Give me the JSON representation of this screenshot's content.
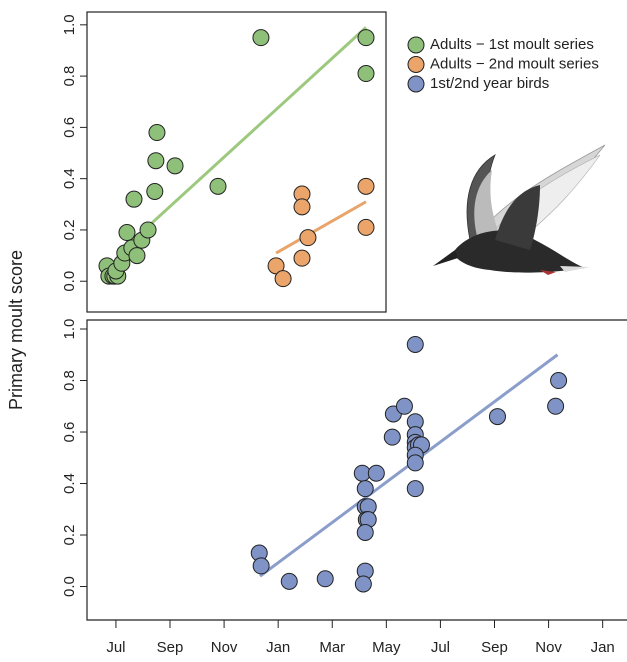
{
  "chart_data": [
    {
      "type": "scatter",
      "xlim": [
        -1.07,
        10.0
      ],
      "ylim": [
        -0.12,
        1.05
      ],
      "yticks": [
        {
          "value": 0,
          "label": "0.0"
        },
        {
          "value": 0.2,
          "label": "0.2"
        },
        {
          "value": 0.4,
          "label": "0.4"
        },
        {
          "value": 0.6,
          "label": "0.6"
        },
        {
          "value": 0.8,
          "label": "0.8"
        },
        {
          "value": 1.0,
          "label": "1.0"
        }
      ],
      "legend": "top-right",
      "series": [
        {
          "name": "Adults − 1st moult series",
          "color": "#8fc07a",
          "line_color": "#9dc97f",
          "x": [
            -0.33,
            -0.26,
            -0.11,
            -0.04,
            0.07,
            0,
            0.22,
            0.33,
            0.41,
            0.59,
            0.78,
            0.96,
            1.19,
            0.67,
            1.44,
            1.52,
            1.48,
            2.19,
            3.78,
            5.37,
            9.26,
            9.26
          ],
          "values": [
            0.06,
            0.02,
            0.02,
            0.02,
            0.02,
            0.04,
            0.07,
            0.11,
            0.19,
            0.13,
            0.1,
            0.16,
            0.2,
            0.32,
            0.35,
            0.58,
            0.47,
            0.45,
            0.37,
            0.95,
            0.95,
            0.81
          ],
          "trend": {
            "x": [
              0.22,
              9.26
            ],
            "values": [
              0.12,
              0.99
            ]
          }
        },
        {
          "name": "Adults − 2nd moult series",
          "color": "#eba56b",
          "line_color": "#e8a46a",
          "x": [
            5.93,
            6.19,
            6.89,
            6.89,
            6.89,
            7.11,
            9.26,
            9.26
          ],
          "values": [
            0.06,
            0.01,
            0.34,
            0.29,
            0.09,
            0.17,
            0.37,
            0.21
          ],
          "trend": {
            "x": [
              5.93,
              9.26
            ],
            "values": [
              0.11,
              0.31
            ]
          }
        }
      ]
    },
    {
      "type": "scatter",
      "ylabel": "Primary moult score",
      "xlim": [
        -1.07,
        18.9
      ],
      "ylim": [
        -0.13,
        1.035
      ],
      "xticks": [
        {
          "value": 0,
          "label": "Jul"
        },
        {
          "value": 2,
          "label": "Sep"
        },
        {
          "value": 4,
          "label": "Nov"
        },
        {
          "value": 6,
          "label": "Jan"
        },
        {
          "value": 8,
          "label": "Mar"
        },
        {
          "value": 10,
          "label": "May"
        },
        {
          "value": 12,
          "label": "Jul"
        },
        {
          "value": 14,
          "label": "Sep"
        },
        {
          "value": 16,
          "label": "Nov"
        },
        {
          "value": 18,
          "label": "Jan"
        }
      ],
      "yticks": [
        {
          "value": 0,
          "label": "0.0"
        },
        {
          "value": 0.2,
          "label": "0.2"
        },
        {
          "value": 0.4,
          "label": "0.4"
        },
        {
          "value": 0.6,
          "label": "0.6"
        },
        {
          "value": 0.8,
          "label": "0.8"
        },
        {
          "value": 1.0,
          "label": "1.0"
        }
      ],
      "series": [
        {
          "name": "1st/2nd year birds",
          "color": "#7f93c6",
          "line_color": "#8a9dcb",
          "x": [
            5.3,
            5.37,
            6.41,
            7.74,
            9.11,
            9.22,
            9.22,
            9.33,
            9.26,
            9.33,
            9.22,
            9.22,
            9.15,
            9.63,
            10.22,
            10.26,
            10.67,
            11.07,
            11.07,
            11.07,
            11.07,
            11.07,
            11.19,
            11.3,
            11.07,
            11.07,
            11.07,
            14.11,
            16.26,
            16.37
          ],
          "values": [
            0.13,
            0.08,
            0.02,
            0.03,
            0.44,
            0.38,
            0.31,
            0.31,
            0.26,
            0.26,
            0.21,
            0.06,
            0.01,
            0.44,
            0.58,
            0.67,
            0.7,
            0.94,
            0.64,
            0.59,
            0.56,
            0.54,
            0.55,
            0.55,
            0.51,
            0.48,
            0.38,
            0.66,
            0.7,
            0.8
          ],
          "trend": {
            "x": [
              5.33,
              16.33
            ],
            "values": [
              0.04,
              0.9
            ]
          }
        }
      ]
    }
  ]
}
